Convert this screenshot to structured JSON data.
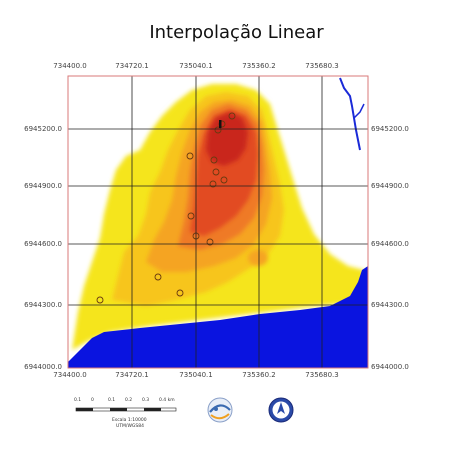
{
  "title": "Interpolação Linear",
  "map": {
    "x_ticks": [
      "734400.0",
      "734720.1",
      "735040.1",
      "735360.2",
      "735680.3"
    ],
    "y_ticks": [
      "6945200.0",
      "6944900.0",
      "6944600.0",
      "6944300.0",
      "6944000.0"
    ],
    "colors": {
      "frame": "#d97a7a",
      "grid": "#202020",
      "water": "#0a14e0",
      "river": "#1a2ad8",
      "low": "#f5e51a",
      "mid_low": "#f7c51e",
      "mid": "#f5a424",
      "mid_high": "#ef7a26",
      "high": "#e24c24",
      "peak": "#c9281e"
    }
  },
  "scale_bar": {
    "tick_labels": [
      "0.1",
      "0",
      "0.1",
      "0.2",
      "0.3",
      "0.4 km"
    ],
    "line1": "Escala 1:10000",
    "line2": "UTM/WGS84"
  },
  "logos": {
    "left_icon": "institution-logo-icon",
    "right_icon": "north-arrow-icon"
  }
}
